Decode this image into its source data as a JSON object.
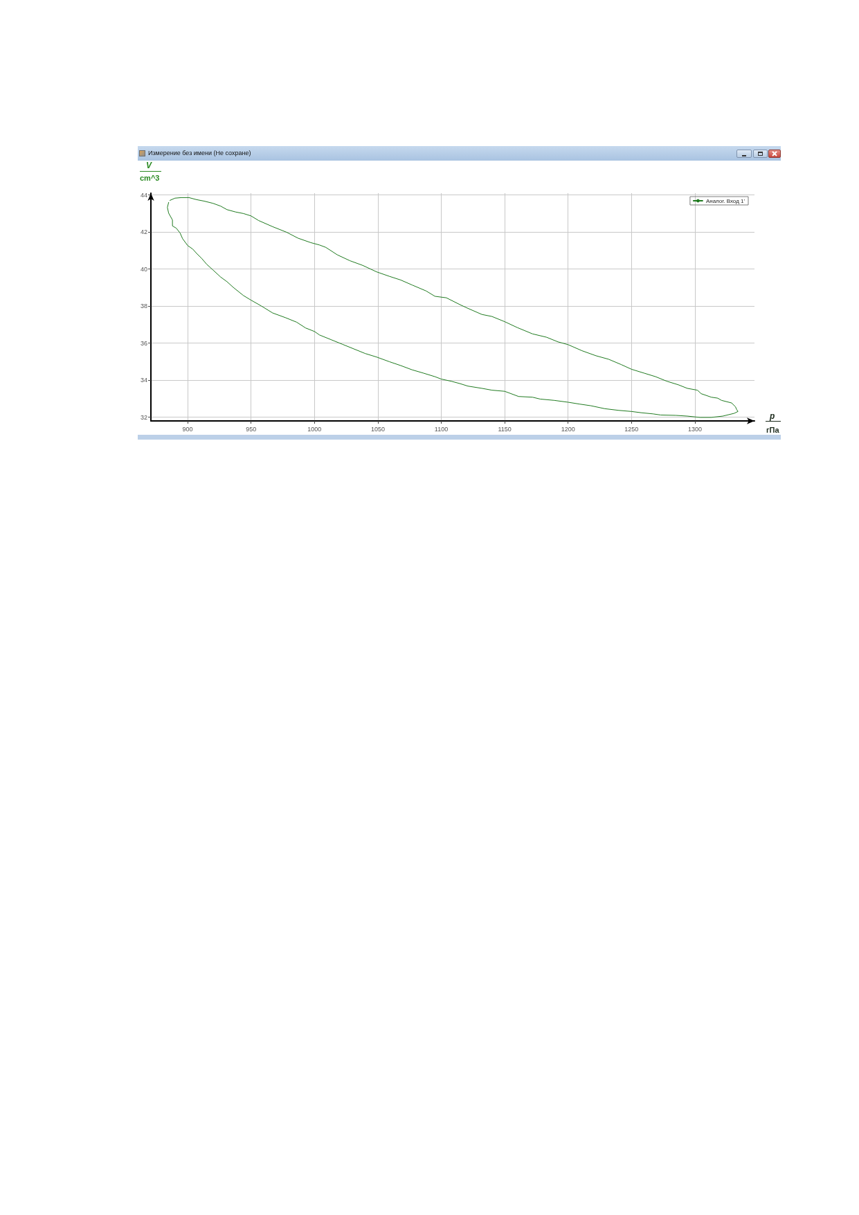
{
  "chart_data": {
    "type": "line",
    "title": "Измерение без имени (Не сохране)",
    "xlabel": "p\nгПа",
    "ylabel": "V\ncm^3",
    "x": [
      886,
      890,
      895,
      901,
      907,
      913,
      920,
      926,
      931,
      938,
      944,
      950,
      956,
      967,
      978,
      987,
      997,
      1004,
      1009,
      1018,
      1028,
      1038,
      1049,
      1059,
      1068,
      1077,
      1088,
      1095,
      1104,
      1115,
      1121,
      1132,
      1140,
      1150,
      1160,
      1172,
      1183,
      1192,
      1200,
      1211,
      1222,
      1232,
      1242,
      1250,
      1260,
      1269,
      1278,
      1287,
      1294,
      1302,
      1305,
      1313,
      1318,
      1321,
      1329,
      1332,
      1333,
      1334,
      1331,
      1322,
      1313,
      1304,
      1294,
      1285,
      1273,
      1267,
      1258,
      1250,
      1240,
      1229,
      1218,
      1209,
      1200,
      1189,
      1178,
      1172,
      1161,
      1150,
      1140,
      1132,
      1121,
      1115,
      1108,
      1100,
      1095,
      1086,
      1077,
      1068,
      1059,
      1049,
      1040,
      1031,
      1022,
      1013,
      1004,
      1000,
      993,
      986,
      977,
      967,
      958,
      950,
      944,
      936,
      931,
      926,
      920,
      915,
      911,
      907,
      904,
      900,
      896,
      894,
      891,
      888,
      888,
      885,
      884,
      885
    ],
    "series": [
      {
        "name": "Аналог. Вход 1'",
        "color": "#1f7a1f",
        "values": [
          43.71,
          43.83,
          43.86,
          43.86,
          43.75,
          43.67,
          43.55,
          43.4,
          43.21,
          43.08,
          43.0,
          42.87,
          42.62,
          42.29,
          41.99,
          41.67,
          41.43,
          41.3,
          41.17,
          40.77,
          40.45,
          40.2,
          39.85,
          39.61,
          39.41,
          39.14,
          38.82,
          38.53,
          38.45,
          38.07,
          37.88,
          37.55,
          37.44,
          37.16,
          36.84,
          36.5,
          36.32,
          36.07,
          35.92,
          35.59,
          35.32,
          35.13,
          34.84,
          34.59,
          34.38,
          34.19,
          33.94,
          33.75,
          33.56,
          33.46,
          33.27,
          33.08,
          33.03,
          32.91,
          32.77,
          32.56,
          32.41,
          32.31,
          32.21,
          32.06,
          31.99,
          31.99,
          32.06,
          32.1,
          32.12,
          32.18,
          32.24,
          32.31,
          32.37,
          32.46,
          32.62,
          32.71,
          32.81,
          32.91,
          32.98,
          33.08,
          33.12,
          33.4,
          33.46,
          33.56,
          33.68,
          33.81,
          33.94,
          34.06,
          34.19,
          34.38,
          34.56,
          34.79,
          35.0,
          35.25,
          35.44,
          35.69,
          35.94,
          36.19,
          36.44,
          36.63,
          36.82,
          37.13,
          37.38,
          37.63,
          38.01,
          38.32,
          38.57,
          39.01,
          39.32,
          39.57,
          39.95,
          40.26,
          40.58,
          40.85,
          41.08,
          41.27,
          41.64,
          41.95,
          42.21,
          42.33,
          42.65,
          43.02,
          43.33,
          43.6
        ]
      }
    ],
    "xlim": [
      871,
      1347
    ],
    "xticks": [
      900,
      950,
      1000,
      1050,
      1100,
      1150,
      1200,
      1250,
      1300
    ],
    "ylim": [
      31.8,
      44.1
    ],
    "yticks": [
      32,
      34,
      36,
      38,
      40,
      42,
      44
    ],
    "grid": true,
    "legend": "top right"
  }
}
